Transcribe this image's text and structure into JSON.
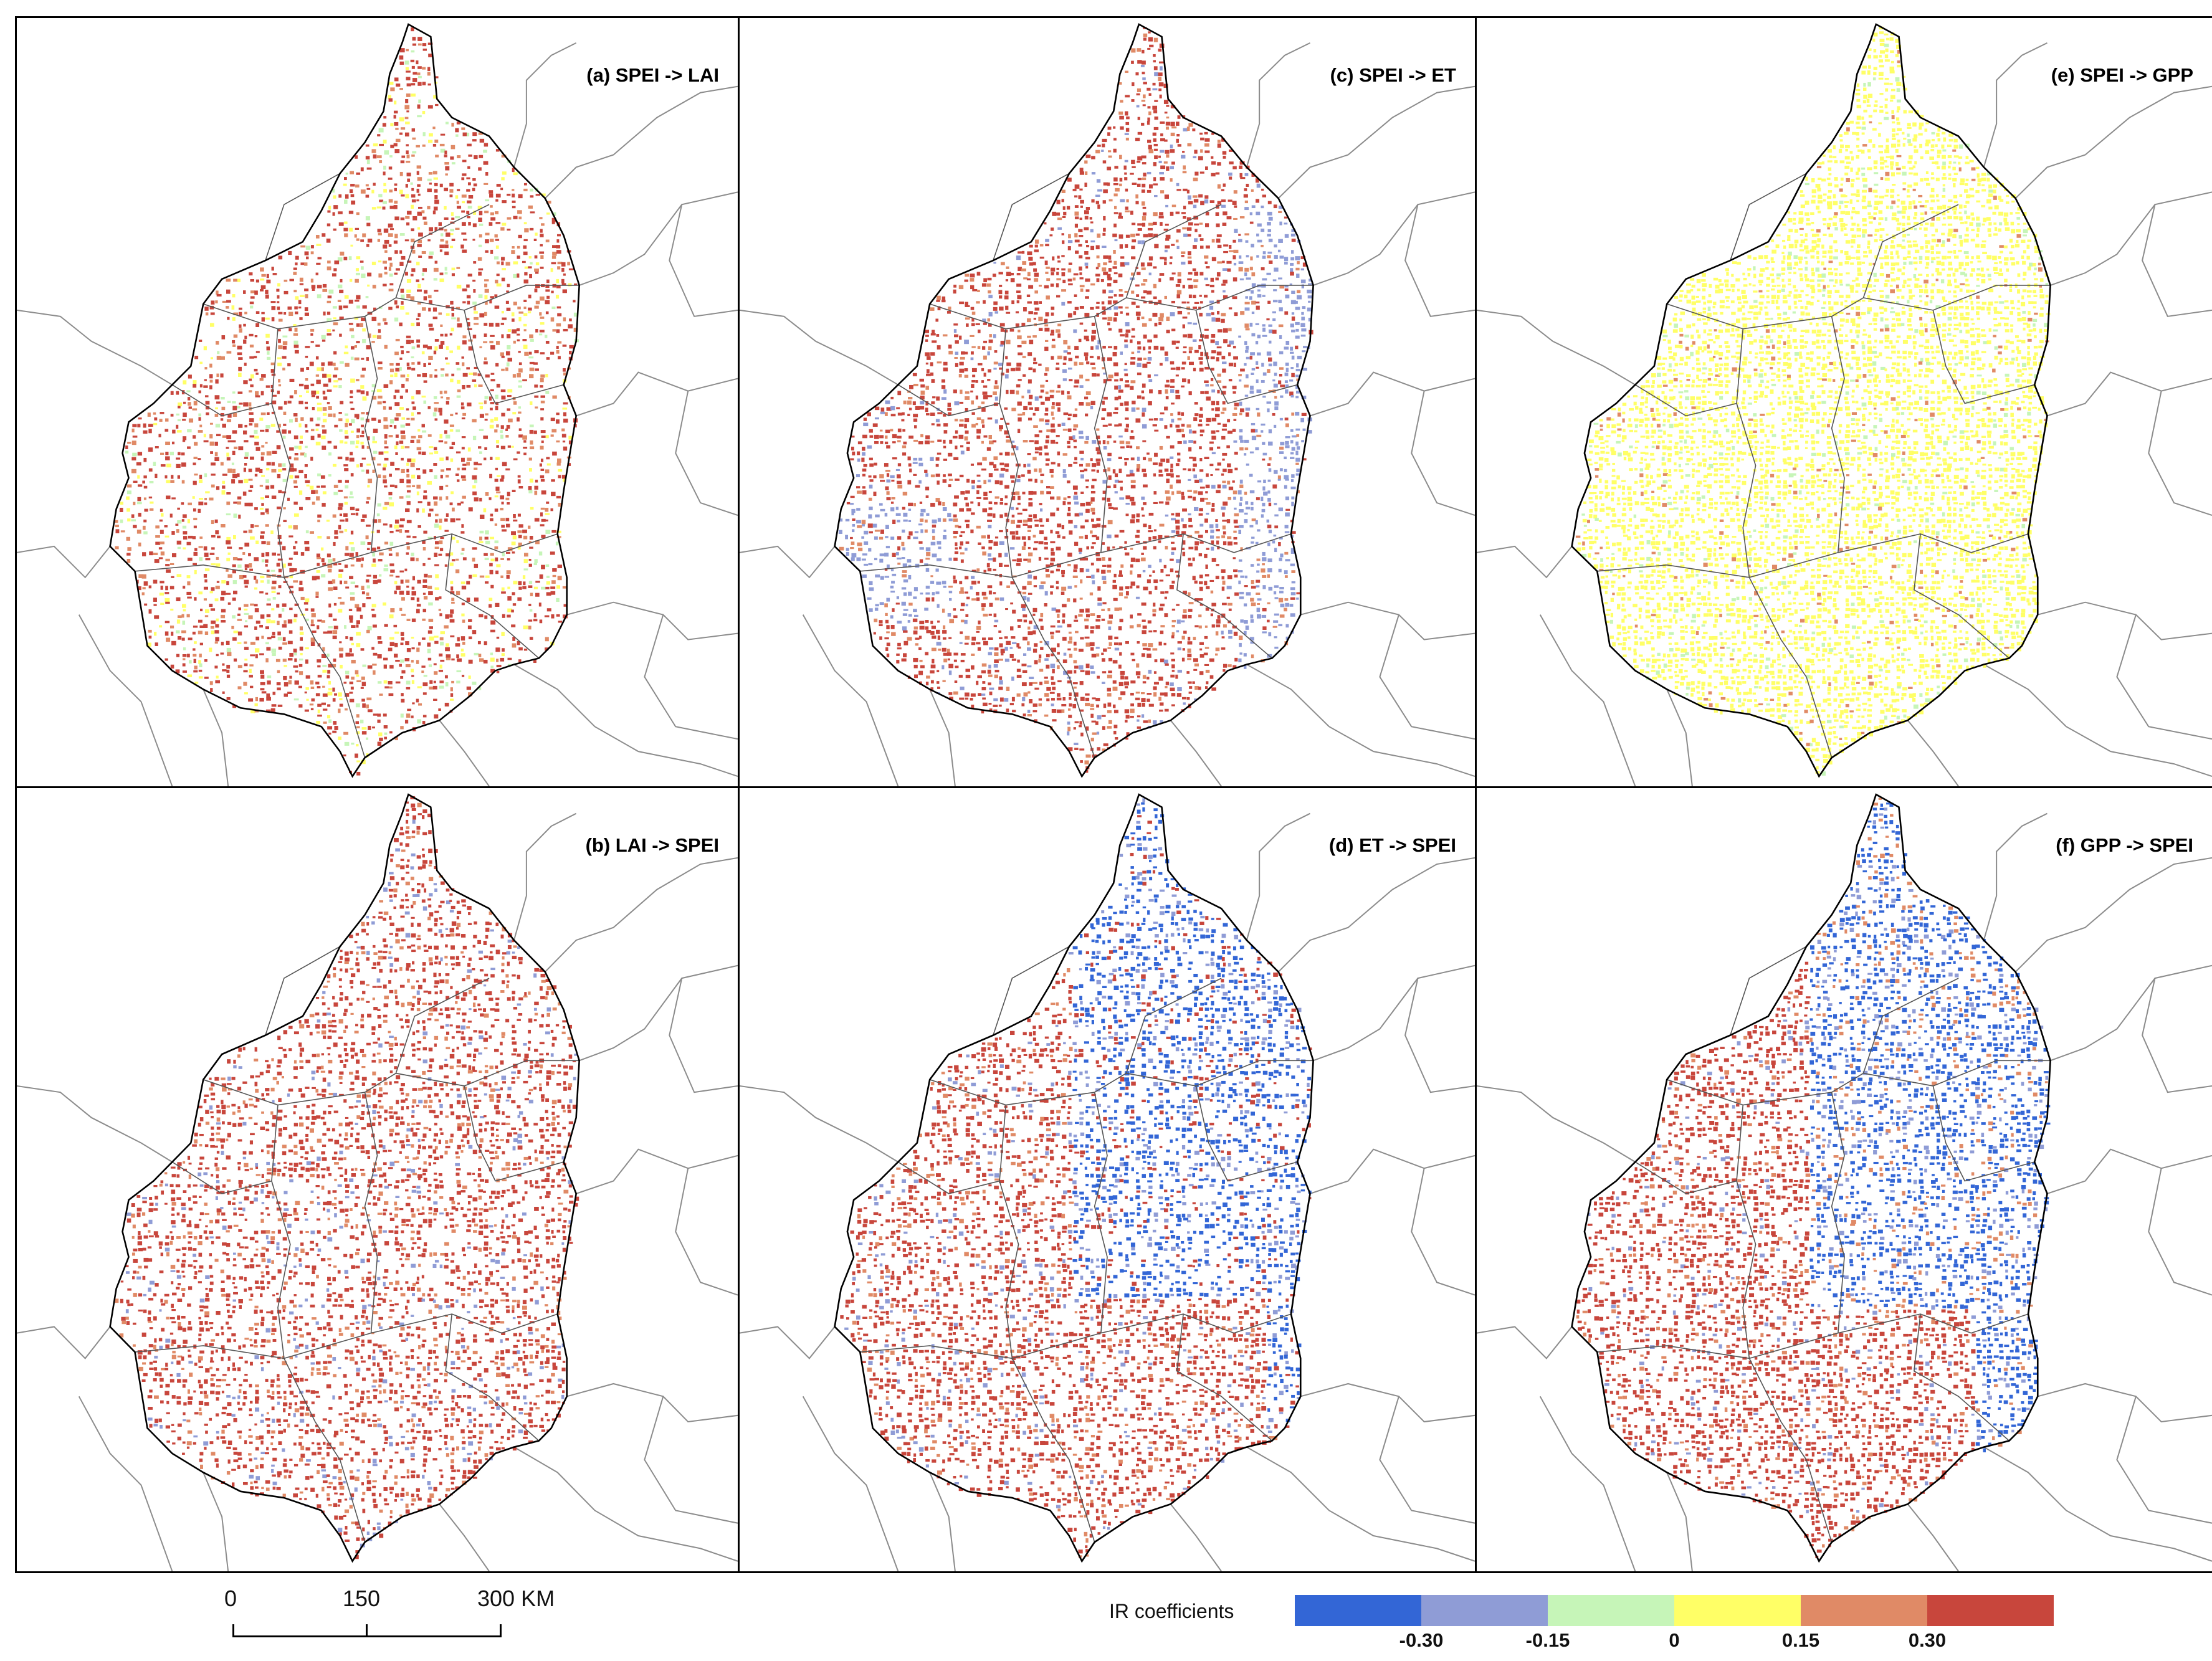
{
  "panels": [
    {
      "id": "a",
      "title": "(a) SPEI -> LAI",
      "palette": "red-dominant-with-greenish-yellow"
    },
    {
      "id": "b",
      "title": "(b) LAI -> SPEI",
      "palette": "red-dominant"
    },
    {
      "id": "c",
      "title": "(c) SPEI -> ET",
      "palette": "red-with-blue-east-edge"
    },
    {
      "id": "d",
      "title": "(d) ET -> SPEI",
      "palette": "blue-northeast-red-southwest"
    },
    {
      "id": "e",
      "title": "(e) SPEI -> GPP",
      "palette": "yellow-dominant"
    },
    {
      "id": "f",
      "title": "(f) GPP -> SPEI",
      "palette": "blue-northeast-red-southwest-strong"
    }
  ],
  "scale_bar": {
    "labels": [
      "0",
      "150",
      "300 KM"
    ],
    "values_km": [
      0,
      150,
      300
    ]
  },
  "legend": {
    "title": "IR coefficients",
    "classes": [
      {
        "color": "#3366d6"
      },
      {
        "color": "#8f9cd6"
      },
      {
        "color": "#c6f5b8"
      },
      {
        "color": "#ffff66"
      },
      {
        "color": "#e08a66"
      },
      {
        "color": "#c8463c"
      }
    ],
    "breaks": [
      "-0.30",
      "-0.15",
      "0",
      "0.15",
      "0.30"
    ]
  },
  "colors": {
    "region_outline": "#000000",
    "neighbor_outline": "#8c8c8c",
    "internal_boundary": "#555555"
  }
}
